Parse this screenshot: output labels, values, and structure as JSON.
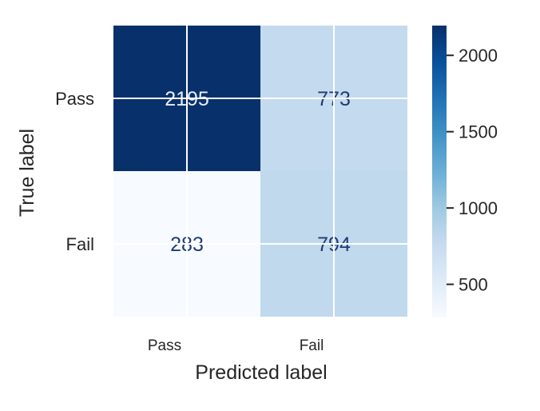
{
  "chart_data": {
    "type": "heatmap",
    "title": "",
    "xlabel": "Predicted label",
    "ylabel": "True label",
    "x_categories": [
      "Pass",
      "Fail"
    ],
    "y_categories": [
      "Pass",
      "Fail"
    ],
    "values": [
      [
        2195,
        773
      ],
      [
        283,
        794
      ]
    ],
    "colormap": "Blues",
    "colorbar": {
      "min": 283,
      "max": 2195,
      "ticks": [
        "500",
        "1000",
        "1500",
        "2000"
      ]
    },
    "grid": true,
    "value_text_colors": {
      "dark_cell": "#e8eef6",
      "light_cell": "#1f3b73"
    }
  }
}
